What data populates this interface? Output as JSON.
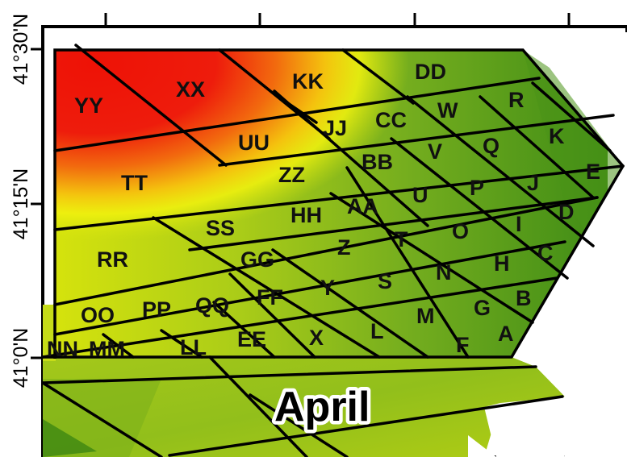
{
  "map_title": "April",
  "y_axis_labels": [
    "41°30'N",
    "41°15'N",
    "41°0'N"
  ],
  "zone_labels": [
    "YY",
    "XX",
    "KK",
    "DD",
    "R",
    "W",
    "CC",
    "JJ",
    "UU",
    "K",
    "Q",
    "V",
    "BB",
    "ZZ",
    "TT",
    "E",
    "J",
    "P",
    "U",
    "AA",
    "HH",
    "D",
    "I",
    "O",
    "T",
    "SS",
    "Z",
    "C",
    "H",
    "N",
    "S",
    "GG",
    "RR",
    "B",
    "G",
    "M",
    "Y",
    "FF",
    "QQ",
    "PP",
    "OO",
    "A",
    "F",
    "L",
    "X",
    "EE",
    "LL",
    "NN",
    "MM"
  ],
  "colors": {
    "high": "#ee1c0c",
    "orange": "#f6820e",
    "yellow": "#f2f20e",
    "lime": "#b8d41a",
    "green": "#6aa81e",
    "dark_green": "#3f8c16",
    "grid_line": "#000000"
  }
}
